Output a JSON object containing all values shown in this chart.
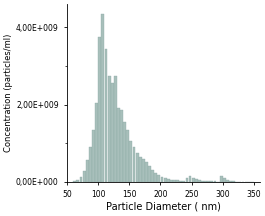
{
  "title": "",
  "xlabel": "Particle Diameter ( nm)",
  "ylabel": "Concentration (particles/ml)",
  "bar_color": "#a8bfbb",
  "bar_edge_color": "#8aa8a3",
  "background_color": "#ffffff",
  "xlim": [
    50,
    360
  ],
  "ylim": [
    0,
    4600000000.0
  ],
  "yticks": [
    0,
    2000000000.0,
    4000000000.0
  ],
  "xticks": [
    50,
    100,
    150,
    200,
    250,
    300,
    350
  ],
  "bin_starts": [
    60,
    65,
    70,
    75,
    80,
    85,
    90,
    95,
    100,
    105,
    110,
    115,
    120,
    125,
    130,
    135,
    140,
    145,
    150,
    155,
    160,
    165,
    170,
    175,
    180,
    185,
    190,
    195,
    200,
    205,
    210,
    215,
    220,
    225,
    230,
    235,
    240,
    245,
    250,
    255,
    260,
    265,
    270,
    275,
    280,
    285,
    290,
    295,
    300,
    305,
    310,
    315,
    320,
    325,
    330,
    335,
    340,
    345
  ],
  "values": [
    25000000.0,
    50000000.0,
    120000000.0,
    280000000.0,
    550000000.0,
    900000000.0,
    1350000000.0,
    2050000000.0,
    3750000000.0,
    4350000000.0,
    3450000000.0,
    2750000000.0,
    2550000000.0,
    2750000000.0,
    1900000000.0,
    1850000000.0,
    1550000000.0,
    1350000000.0,
    1050000000.0,
    900000000.0,
    750000000.0,
    650000000.0,
    600000000.0,
    500000000.0,
    400000000.0,
    300000000.0,
    220000000.0,
    170000000.0,
    120000000.0,
    85000000.0,
    70000000.0,
    55000000.0,
    45000000.0,
    35000000.0,
    30000000.0,
    25000000.0,
    95000000.0,
    140000000.0,
    90000000.0,
    60000000.0,
    40000000.0,
    30000000.0,
    20000000.0,
    15000000.0,
    12000000.0,
    8000000.0,
    4000000.0,
    140000000.0,
    90000000.0,
    40000000.0,
    15000000.0,
    8000000.0,
    4000000.0,
    2000000.0,
    1500000.0,
    800000.0,
    400000.0,
    200000.0
  ],
  "xlabel_fontsize": 7,
  "ylabel_fontsize": 6,
  "tick_labelsize": 5.5
}
